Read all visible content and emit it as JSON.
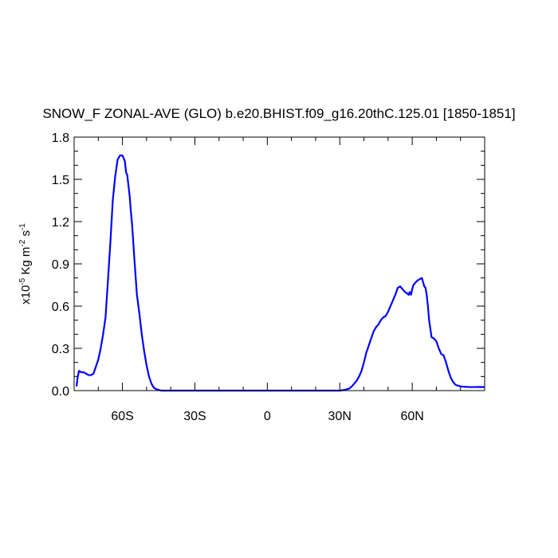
{
  "chart_data": {
    "type": "line",
    "title": "SNOW_F ZONAL-AVE (GLO) b.e20.BHIST.f09_g16.20thC.125.01 [1850-1851]",
    "ylabel": {
      "prefix": "x10",
      "exponent": "-5",
      "unit": " Kg m",
      "unit_exp1": "-2",
      "unit_mid": " s",
      "unit_exp2": "-1"
    },
    "xlabel": "",
    "xlim": [
      -80,
      90
    ],
    "ylim": [
      0,
      1.8
    ],
    "x_ticks": [
      {
        "value": -60,
        "label": "60S"
      },
      {
        "value": -30,
        "label": "30S"
      },
      {
        "value": 0,
        "label": "0"
      },
      {
        "value": 30,
        "label": "30N"
      },
      {
        "value": 60,
        "label": "60N"
      }
    ],
    "y_ticks": [
      {
        "value": 0.0,
        "label": "0.0"
      },
      {
        "value": 0.3,
        "label": "0.3"
      },
      {
        "value": 0.6,
        "label": "0.6"
      },
      {
        "value": 0.9,
        "label": "0.9"
      },
      {
        "value": 1.2,
        "label": "1.2"
      },
      {
        "value": 1.5,
        "label": "1.5"
      },
      {
        "value": 1.8,
        "label": "1.8"
      }
    ],
    "grid": false,
    "series": [
      {
        "color": "#0000ff",
        "x": [
          -79.0,
          -78.5,
          -78.0,
          -77.0,
          -76.0,
          -75.0,
          -74.0,
          -73.0,
          -72.0,
          -71.0,
          -70.0,
          -69.0,
          -68.0,
          -67.0,
          -66.0,
          -65.0,
          -64.0,
          -63.0,
          -62.0,
          -61.0,
          -60.0,
          -59.0,
          -58.5,
          -58.0,
          -57.0,
          -56.5,
          -56.0,
          -55.0,
          -54.0,
          -53.0,
          -52.0,
          -51.0,
          -50.0,
          -49.0,
          -48.0,
          -47.0,
          -46.0,
          -45.0,
          -44.0,
          -43.0,
          -42.0,
          -40.0,
          -35.0,
          -30.0,
          -20.0,
          0.0,
          10.0,
          20.0,
          30.0,
          32.0,
          34.0,
          35.0,
          36.0,
          37.0,
          38.0,
          39.0,
          40.0,
          41.0,
          42.0,
          43.0,
          44.0,
          45.0,
          46.0,
          47.0,
          48.0,
          49.0,
          50.0,
          51.0,
          52.0,
          53.0,
          54.0,
          55.0,
          56.0,
          57.0,
          58.0,
          58.5,
          59.0,
          59.5,
          60.0,
          60.5,
          61.0,
          62.0,
          63.0,
          64.0,
          65.0,
          65.5,
          66.0,
          66.5,
          67.0,
          67.5,
          68.0,
          69.0,
          70.0,
          71.0,
          72.0,
          73.0,
          74.0,
          75.0,
          76.0,
          77.0,
          78.0,
          79.0,
          80.0,
          81.0,
          82.0,
          84.0,
          86.0,
          88.0,
          90.0
        ],
        "y": [
          0.03,
          0.1,
          0.14,
          0.13,
          0.13,
          0.12,
          0.11,
          0.11,
          0.12,
          0.17,
          0.22,
          0.3,
          0.4,
          0.52,
          0.78,
          1.05,
          1.35,
          1.52,
          1.64,
          1.67,
          1.67,
          1.63,
          1.55,
          1.53,
          1.38,
          1.27,
          1.18,
          0.92,
          0.68,
          0.55,
          0.4,
          0.28,
          0.18,
          0.1,
          0.05,
          0.02,
          0.01,
          0.005,
          0.0,
          0.0,
          0.0,
          0.0,
          0.0,
          0.0,
          0.0,
          0.0,
          0.0,
          0.0,
          0.0,
          0.005,
          0.015,
          0.03,
          0.05,
          0.07,
          0.1,
          0.14,
          0.2,
          0.27,
          0.32,
          0.37,
          0.42,
          0.45,
          0.47,
          0.5,
          0.52,
          0.53,
          0.56,
          0.6,
          0.64,
          0.68,
          0.73,
          0.74,
          0.72,
          0.7,
          0.69,
          0.68,
          0.7,
          0.68,
          0.72,
          0.75,
          0.76,
          0.78,
          0.79,
          0.8,
          0.74,
          0.73,
          0.68,
          0.6,
          0.5,
          0.44,
          0.38,
          0.37,
          0.35,
          0.3,
          0.26,
          0.25,
          0.2,
          0.14,
          0.09,
          0.06,
          0.04,
          0.035,
          0.03,
          0.028,
          0.027,
          0.025,
          0.025,
          0.026,
          0.025
        ]
      }
    ]
  }
}
